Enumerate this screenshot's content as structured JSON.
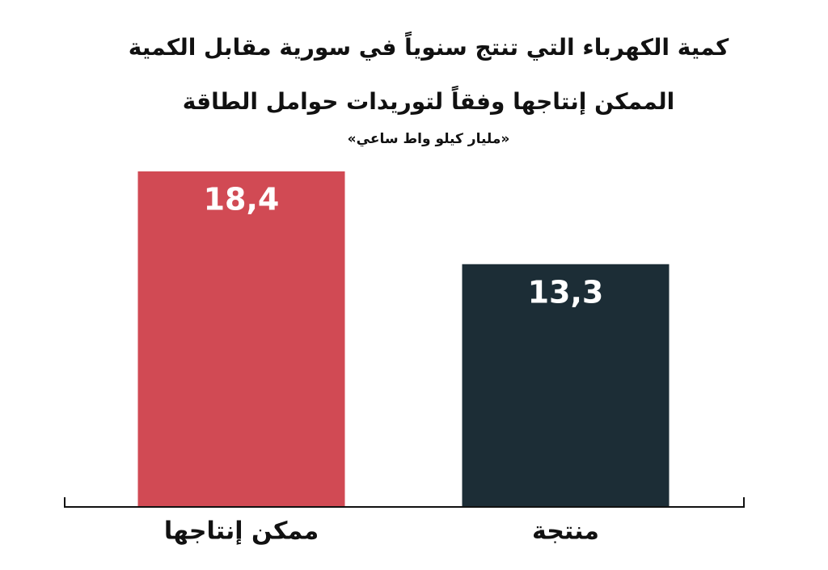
{
  "chart_data": {
    "type": "bar",
    "title": [
      "كمية الكهرباء التي تنتج سنوياً في سورية مقابل الكمية",
      "الممكن إنتاجها وفقاً لتوريدات حوامل الطاقة"
    ],
    "subtitle": "«مليار كيلو واط ساعي»",
    "categories": [
      "ممكن إنتاجها",
      "منتجة"
    ],
    "values": [
      18.4,
      13.3
    ],
    "value_labels": [
      "18,4",
      "13,3"
    ],
    "colors": [
      "#d14a54",
      "#1c2d36"
    ]
  }
}
